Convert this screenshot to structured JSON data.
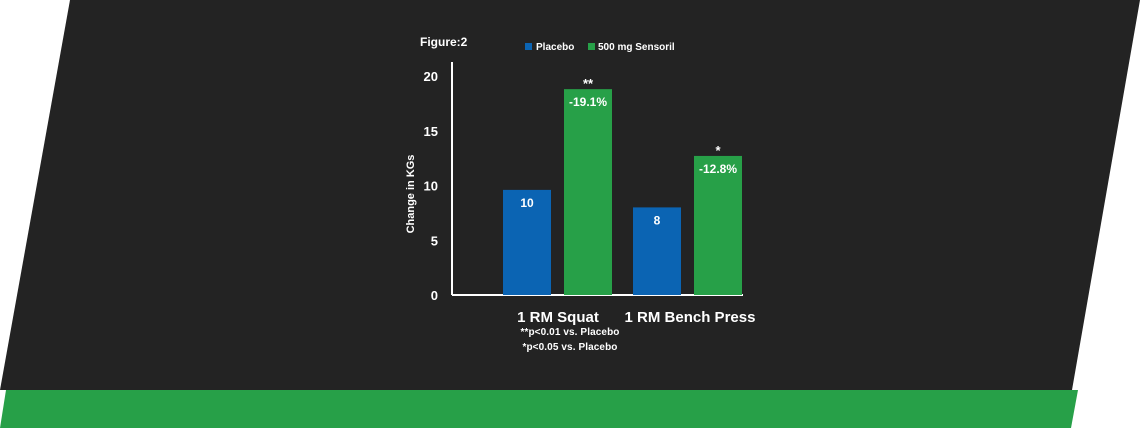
{
  "figure_label": "Figure:2",
  "footnotes": [
    "**p<0.01 vs. Placebo",
    "*p<0.05 vs. Placebo"
  ],
  "colors": {
    "background_dark": "#232323",
    "band_green": "#27a048",
    "placebo": "#0b64b3",
    "sensoril": "#27a048",
    "text": "#ffffff"
  },
  "chart_data": {
    "type": "bar",
    "title": "",
    "xlabel": "",
    "ylabel": "Change in KGs",
    "ylim": [
      0,
      20
    ],
    "yticks": [
      0,
      5,
      10,
      15,
      20
    ],
    "grid": false,
    "legend_position": "top",
    "categories": [
      "1 RM Squat",
      "1 RM Bench Press"
    ],
    "series": [
      {
        "name": "Placebo",
        "color": "#0b64b3",
        "values": [
          9.6,
          8.0
        ],
        "labels": [
          "10",
          "8"
        ],
        "markers": [
          "",
          ""
        ]
      },
      {
        "name": "500 mg Sensoril",
        "color": "#27a048",
        "values": [
          18.8,
          12.7
        ],
        "labels": [
          "-19.1%",
          "-12.8%"
        ],
        "markers": [
          "**",
          "*"
        ]
      }
    ]
  }
}
